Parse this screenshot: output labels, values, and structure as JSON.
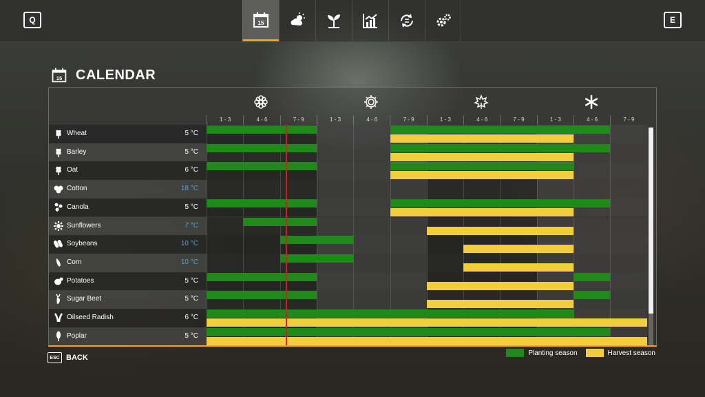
{
  "topbar": {
    "left_key": "Q",
    "right_key": "E",
    "tabs": [
      {
        "icon": "calendar-icon",
        "active": true
      },
      {
        "icon": "weather-icon",
        "active": false
      },
      {
        "icon": "sprout-icon",
        "active": false
      },
      {
        "icon": "prices-chart-icon",
        "active": false
      },
      {
        "icon": "cycle-icon",
        "active": false
      },
      {
        "icon": "settings-gears-icon",
        "active": false
      }
    ],
    "calendar_tab_day": "15"
  },
  "page": {
    "title": "CALENDAR",
    "icon_day": "15"
  },
  "seasons": [
    "spring-flower-icon",
    "summer-sun-icon",
    "autumn-leaf-icon",
    "winter-snowflake-icon"
  ],
  "periods": [
    "1 - 3",
    "4 - 6",
    "7 - 9",
    "1 - 3",
    "4 - 6",
    "7 - 9",
    "1 - 3",
    "4 - 6",
    "7 - 9",
    "1 - 3",
    "4 - 6",
    "7 - 9"
  ],
  "crops": [
    {
      "name": "Wheat",
      "temp": "5 °C",
      "warm": false,
      "icon": "wheat-icon",
      "planting": [
        [
          0,
          3
        ],
        [
          5,
          11
        ]
      ],
      "harvest": [
        [
          5,
          10
        ]
      ]
    },
    {
      "name": "Barley",
      "temp": "5 °C",
      "warm": false,
      "icon": "barley-icon",
      "planting": [
        [
          0,
          3
        ],
        [
          5,
          11
        ]
      ],
      "harvest": [
        [
          5,
          10
        ]
      ]
    },
    {
      "name": "Oat",
      "temp": "6 °C",
      "warm": false,
      "icon": "oat-icon",
      "planting": [
        [
          0,
          3
        ],
        [
          5,
          10
        ]
      ],
      "harvest": [
        [
          5,
          10
        ]
      ]
    },
    {
      "name": "Cotton",
      "temp": "18 °C",
      "warm": true,
      "icon": "cotton-icon",
      "planting": [],
      "harvest": []
    },
    {
      "name": "Canola",
      "temp": "5 °C",
      "warm": false,
      "icon": "canola-icon",
      "planting": [
        [
          0,
          3
        ],
        [
          5,
          11
        ]
      ],
      "harvest": [
        [
          5,
          10
        ]
      ]
    },
    {
      "name": "Sunflowers",
      "temp": "7 °C",
      "warm": true,
      "icon": "sunflower-icon",
      "planting": [
        [
          1,
          3
        ]
      ],
      "harvest": [
        [
          6,
          10
        ]
      ]
    },
    {
      "name": "Soybeans",
      "temp": "10 °C",
      "warm": true,
      "icon": "soybean-icon",
      "planting": [
        [
          2,
          4
        ]
      ],
      "harvest": [
        [
          7,
          10
        ]
      ]
    },
    {
      "name": "Corn",
      "temp": "10 °C",
      "warm": true,
      "icon": "corn-icon",
      "planting": [
        [
          2,
          4
        ]
      ],
      "harvest": [
        [
          7,
          10
        ]
      ]
    },
    {
      "name": "Potatoes",
      "temp": "5 °C",
      "warm": false,
      "icon": "potato-icon",
      "planting": [
        [
          0,
          3
        ],
        [
          10,
          11
        ]
      ],
      "harvest": [
        [
          6,
          10
        ]
      ]
    },
    {
      "name": "Sugar Beet",
      "temp": "5 °C",
      "warm": false,
      "icon": "sugarbeet-icon",
      "planting": [
        [
          0,
          3
        ],
        [
          10,
          11
        ]
      ],
      "harvest": [
        [
          6,
          10
        ]
      ]
    },
    {
      "name": "Oilseed Radish",
      "temp": "6 °C",
      "warm": false,
      "icon": "oilseed-radish-icon",
      "planting": [
        [
          0,
          10
        ]
      ],
      "harvest": [
        [
          0,
          12
        ]
      ]
    },
    {
      "name": "Poplar",
      "temp": "5 °C",
      "warm": false,
      "icon": "poplar-icon",
      "planting": [
        [
          0,
          11
        ]
      ],
      "harvest": [
        [
          0,
          12
        ]
      ]
    }
  ],
  "current_period_fraction": 0.16,
  "colors": {
    "planting": "#1f8a1a",
    "harvest": "#f2cd3c",
    "accent": "#f0a51e",
    "current_marker": "#d11f1f",
    "warm_temp": "#4aa9e0"
  },
  "footer": {
    "esc_key": "ESC",
    "back_label": "BACK",
    "legend": {
      "planting": "Planting season",
      "harvest": "Harvest season"
    }
  }
}
